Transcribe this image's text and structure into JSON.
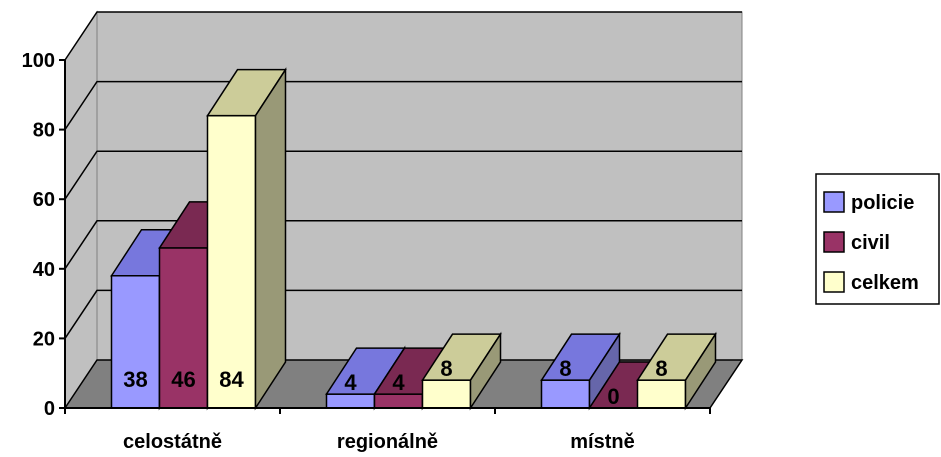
{
  "chart_data": {
    "type": "bar",
    "style": "3d-clustered-column",
    "categories": [
      "celostátně",
      "regionálně",
      "místně"
    ],
    "series": [
      {
        "name": "policie",
        "values": [
          38,
          4,
          8
        ],
        "color": "#9999ff",
        "top_color": "#7777dd",
        "side_color": "#6666aa"
      },
      {
        "name": "civil",
        "values": [
          46,
          4,
          0
        ],
        "color": "#993366",
        "top_color": "#7a2952",
        "side_color": "#66223f"
      },
      {
        "name": "celkem",
        "values": [
          84,
          8,
          8
        ],
        "color": "#ffffcc",
        "top_color": "#cccc99",
        "side_color": "#999977"
      }
    ],
    "y_ticks": [
      0,
      20,
      40,
      60,
      80,
      100
    ],
    "ylim": [
      0,
      100
    ],
    "grid": true,
    "legend": "right",
    "colors": {
      "wall": "#c0c0c0",
      "floor": "#808080",
      "grid": "#000000"
    }
  }
}
